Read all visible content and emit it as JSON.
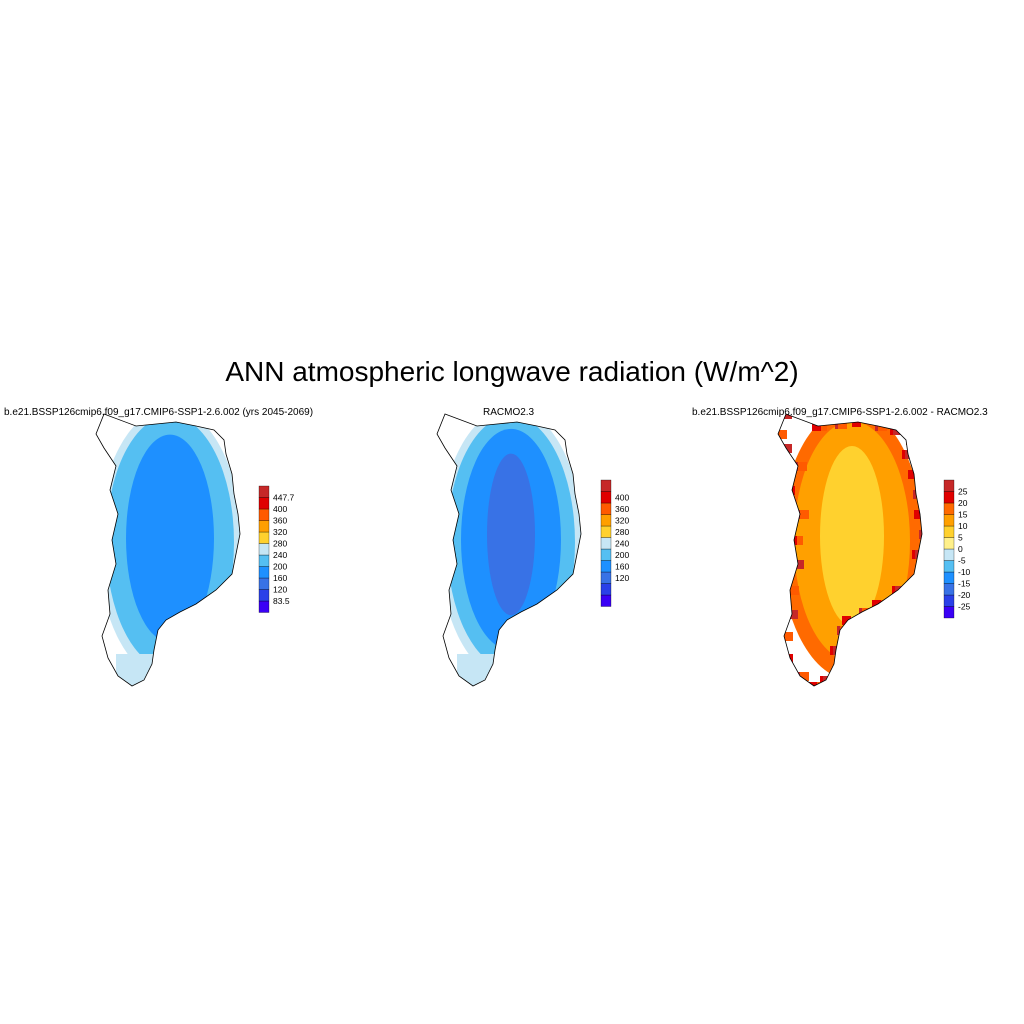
{
  "title": "ANN atmospheric longwave radiation (W/m^2)",
  "panels": [
    {
      "title": "b.e21.BSSP126cmip6.f09_g17.CMIP6-SSP1-2.6.002 (yrs 2045-2069)",
      "colorbar": {
        "colors": [
          "#3a00f5",
          "#2a40e8",
          "#3872e6",
          "#1e90ff",
          "#55bff2",
          "#c6e6f5",
          "#ffd12e",
          "#ff9f00",
          "#ff5a00",
          "#e00000",
          "#c62828"
        ],
        "labels": [
          "83.5",
          "120",
          "160",
          "200",
          "240",
          "280",
          "320",
          "360",
          "400",
          "447.7"
        ]
      },
      "regions": [
        {
          "fill": "#1e90ff",
          "fraction": 0.55
        },
        {
          "fill": "#55bff2",
          "fraction": 0.3
        },
        {
          "fill": "#c6e6f5",
          "fraction": 0.1
        },
        {
          "fill": "#ffd12e",
          "fraction": 0.05
        }
      ]
    },
    {
      "title": "RACMO2.3",
      "colorbar": {
        "colors": [
          "#3a00f5",
          "#2a40e8",
          "#3872e6",
          "#1e90ff",
          "#55bff2",
          "#c6e6f5",
          "#ffd12e",
          "#ff9f00",
          "#ff5a00",
          "#e00000",
          "#c62828"
        ],
        "labels": [
          "120",
          "160",
          "200",
          "240",
          "280",
          "320",
          "360",
          "400"
        ]
      }
    },
    {
      "title": "b.e21.BSSP126cmip6.f09_g17.CMIP6-SSP1-2.6.002 - RACMO2.3",
      "colorbar": {
        "colors": [
          "#3a00f5",
          "#2a40e8",
          "#3872e6",
          "#1e90ff",
          "#55bff2",
          "#c6e6f5",
          "#fff08a",
          "#ffd12e",
          "#ffa000",
          "#ff6a00",
          "#e00000",
          "#c62828"
        ],
        "labels": [
          "-25",
          "-20",
          "-15",
          "-10",
          "-5",
          "0",
          "5",
          "10",
          "15",
          "20",
          "25"
        ]
      }
    }
  ],
  "chart_data": {
    "type": "heatmap",
    "title": "ANN atmospheric longwave radiation (W/m^2)",
    "panels": [
      {
        "title": "b.e21.BSSP126cmip6.f09_g17.CMIP6-SSP1-2.6.002 (yrs 2045-2069)",
        "levels": [
          83.5,
          120,
          160,
          200,
          240,
          280,
          320,
          360,
          400,
          447.7
        ],
        "dominant_range": [
          160,
          240
        ]
      },
      {
        "title": "RACMO2.3",
        "levels": [
          120,
          160,
          200,
          240,
          280,
          320,
          360,
          400
        ],
        "dominant_range": [
          120,
          240
        ]
      },
      {
        "title": "b.e21.BSSP126cmip6.f09_g17.CMIP6-SSP1-2.6.002 - RACMO2.3",
        "levels": [
          -25,
          -20,
          -15,
          -10,
          -5,
          0,
          5,
          10,
          15,
          20,
          25
        ],
        "dominant_range": [
          5,
          25
        ]
      }
    ]
  }
}
